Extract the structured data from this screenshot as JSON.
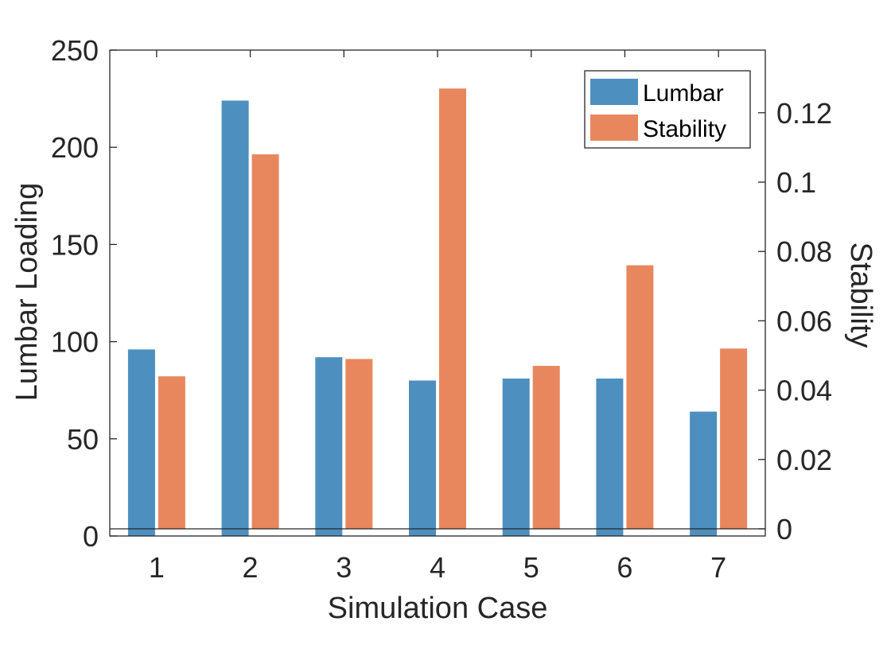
{
  "chart_data": {
    "type": "bar",
    "categories": [
      "1",
      "2",
      "3",
      "4",
      "5",
      "6",
      "7"
    ],
    "xlabel": "Simulation Case",
    "ylabel_left": "Lumbar Loading",
    "ylabel_right": "Stability",
    "ylim_left": [
      0,
      250
    ],
    "ylim_right": [
      0,
      0.14
    ],
    "yticks_left": [
      "0",
      "50",
      "100",
      "150",
      "200",
      "250"
    ],
    "yticks_right": [
      "0",
      "0.02",
      "0.04",
      "0.06",
      "0.08",
      "0.1",
      "0.12"
    ],
    "series": [
      {
        "name": "Lumbar",
        "axis": "left",
        "color": "#4d8fbf",
        "values": [
          96,
          224,
          92,
          80,
          81,
          81,
          64
        ]
      },
      {
        "name": "Stability",
        "axis": "right",
        "color": "#e8875d",
        "values": [
          0.044,
          0.108,
          0.049,
          0.127,
          0.047,
          0.076,
          0.052
        ]
      }
    ],
    "legend_position": "top-right",
    "grid": false
  }
}
